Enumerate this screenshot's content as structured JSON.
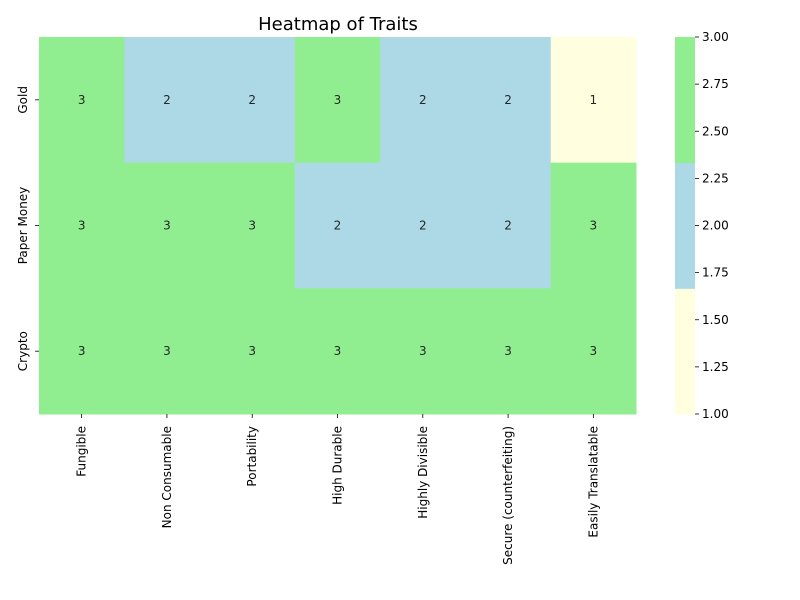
{
  "chart_data": {
    "type": "heatmap",
    "title": "Heatmap of Traits",
    "xlabel": "",
    "ylabel": "",
    "x_categories": [
      "Fungible",
      "Non Consumable",
      "Portability",
      "High Durable",
      "Highly Divisible",
      "Secure (counterfeiting)",
      "Easily Translatable"
    ],
    "y_categories": [
      "Gold",
      "Paper Money",
      "Crypto"
    ],
    "values": [
      [
        3,
        2,
        2,
        3,
        2,
        2,
        1
      ],
      [
        3,
        3,
        3,
        2,
        2,
        2,
        3
      ],
      [
        3,
        3,
        3,
        3,
        3,
        3,
        3
      ]
    ],
    "annotations": true,
    "colormap": [
      {
        "value": 1,
        "color": "#FFFFE0"
      },
      {
        "value": 2,
        "color": "#ADD8E6"
      },
      {
        "value": 3,
        "color": "#90EE90"
      }
    ],
    "colorbar": {
      "range": [
        1.0,
        3.0
      ],
      "ticks": [
        "1.00",
        "1.25",
        "1.50",
        "1.75",
        "2.00",
        "2.25",
        "2.50",
        "2.75",
        "3.00"
      ]
    },
    "grid": false
  }
}
